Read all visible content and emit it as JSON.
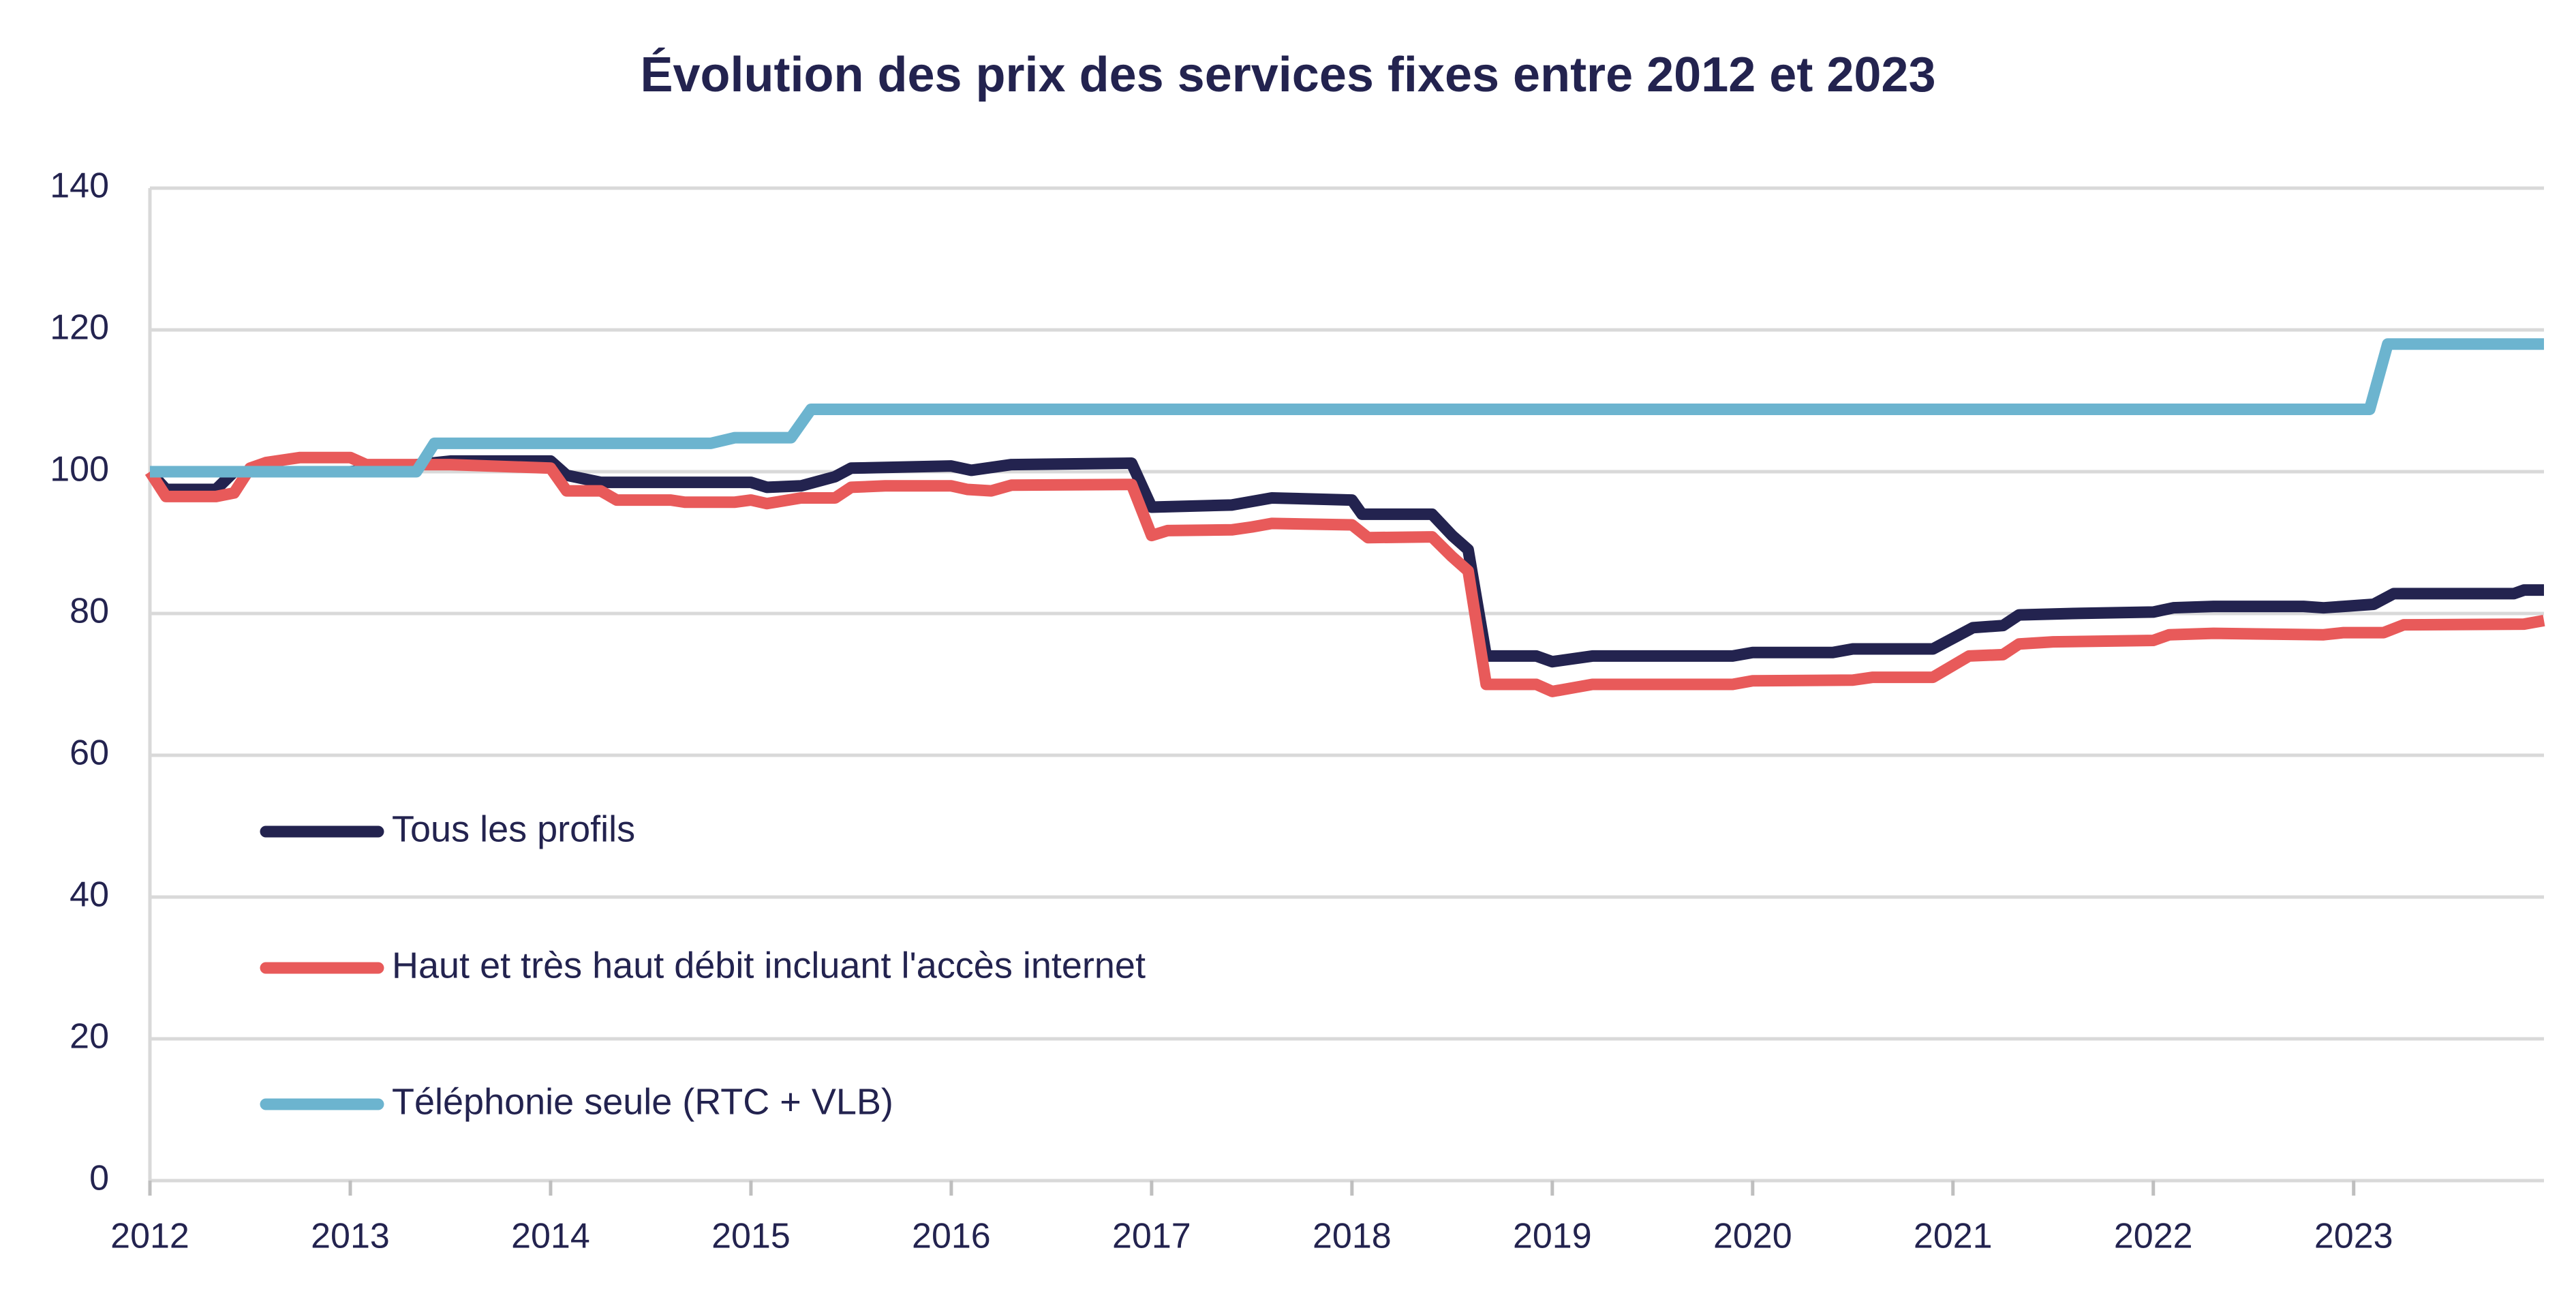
{
  "chart_data": {
    "type": "line",
    "title": "Évolution des prix des services fixes entre 2012 et 2023",
    "xlim": [
      2012,
      2023.95
    ],
    "xticks": [
      2012,
      2013,
      2014,
      2015,
      2016,
      2017,
      2018,
      2019,
      2020,
      2021,
      2022,
      2023
    ],
    "ylim": [
      0,
      140
    ],
    "yticks": [
      0,
      20,
      40,
      60,
      80,
      100,
      120,
      140
    ],
    "grid": true,
    "legend": "left",
    "series": [
      {
        "name": "Tous les profils",
        "color": "#23234f",
        "x": [
          2012,
          2012.08,
          2012.33,
          2012.42,
          2013,
          2013.5,
          2014,
          2014.08,
          2014.25,
          2015,
          2015.08,
          2015.25,
          2015.42,
          2015.5,
          2016,
          2016.1,
          2016.3,
          2016.9,
          2017,
          2017.4,
          2017.6,
          2018,
          2018.05,
          2018.4,
          2018.5,
          2018.58,
          2018.67,
          2018.92,
          2019,
          2019.2,
          2019.9,
          2020,
          2020.4,
          2020.5,
          2020.9,
          2021.1,
          2021.25,
          2021.33,
          2021.6,
          2022,
          2022.1,
          2022.3,
          2022.75,
          2022.85,
          2022.95,
          2023.1,
          2023.2,
          2023.8,
          2023.85,
          2023.95
        ],
        "values": [
          100,
          97.5,
          97.5,
          100,
          100,
          101.5,
          101.5,
          99.5,
          98.5,
          98.5,
          97.8,
          98,
          99.3,
          100.5,
          100.8,
          100.2,
          101,
          101.2,
          95,
          95.3,
          96.3,
          96,
          94,
          94,
          91,
          89,
          74,
          74,
          73.2,
          74,
          74,
          74.5,
          74.5,
          75,
          75,
          78,
          78.3,
          79.8,
          80,
          80.2,
          80.8,
          81,
          81,
          80.8,
          81,
          81.3,
          82.8,
          82.8,
          83.3,
          83.3
        ]
      },
      {
        "name": "Haut et très haut débit incluant l'accès internet",
        "color": "#e85a5a",
        "x": [
          2012,
          2012.08,
          2012.33,
          2012.42,
          2012.5,
          2012.58,
          2012.75,
          2013,
          2013.08,
          2013.5,
          2014,
          2014.08,
          2014.25,
          2014.33,
          2014.6,
          2014.67,
          2014.92,
          2015,
          2015.08,
          2015.25,
          2015.42,
          2015.5,
          2015.67,
          2016,
          2016.08,
          2016.2,
          2016.3,
          2016.9,
          2017,
          2017.08,
          2017.4,
          2017.5,
          2017.6,
          2018,
          2018.08,
          2018.4,
          2018.5,
          2018.58,
          2018.67,
          2018.92,
          2019,
          2019.2,
          2019.9,
          2020,
          2020.5,
          2020.6,
          2020.9,
          2021.08,
          2021.25,
          2021.33,
          2021.5,
          2022,
          2022.08,
          2022.3,
          2022.85,
          2022.95,
          2023.15,
          2023.25,
          2023.85,
          2023.95
        ],
        "values": [
          100,
          96.5,
          96.5,
          97,
          100.5,
          101.3,
          102,
          102,
          101,
          101,
          100.5,
          97.3,
          97.3,
          96,
          96,
          95.7,
          95.7,
          96,
          95.5,
          96.3,
          96.3,
          97.8,
          98,
          98,
          97.5,
          97.3,
          98.1,
          98.2,
          91,
          91.7,
          91.8,
          92.2,
          92.7,
          92.5,
          90.7,
          90.8,
          88,
          86,
          70,
          70,
          69,
          70,
          70,
          70.5,
          70.6,
          71,
          71,
          74,
          74.2,
          75.7,
          76,
          76.2,
          77,
          77.2,
          77,
          77.3,
          77.3,
          78.4,
          78.5,
          79
        ]
      },
      {
        "name": "Téléphonie seule (RTC + VLB)",
        "color": "#6cb4cf",
        "x": [
          2012,
          2013.33,
          2013.42,
          2014.8,
          2014.92,
          2015.2,
          2015.3,
          2023.08,
          2023.17,
          2023.95
        ],
        "values": [
          100,
          100,
          104,
          104,
          104.8,
          104.8,
          108.8,
          108.8,
          118,
          118
        ]
      }
    ]
  }
}
